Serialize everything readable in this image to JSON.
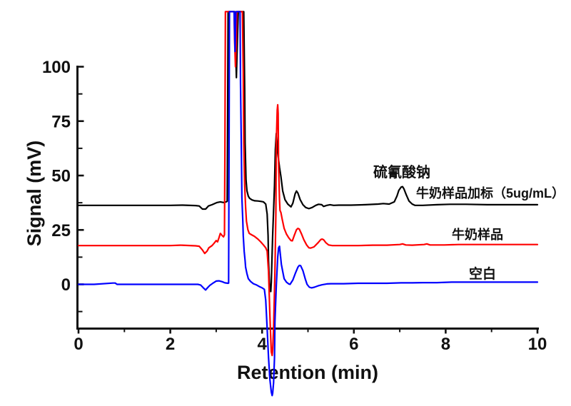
{
  "figure": {
    "background_color": "#ffffff",
    "annotations": {
      "peak_label": "硫氰酸钠",
      "spiked_label": "牛奶样品加标（5ug/mL）",
      "milk_label": "牛奶样品",
      "blank_label": "空白"
    }
  },
  "chart_data": {
    "type": "line",
    "title": "",
    "xlabel": "Retention (min)",
    "ylabel": "Signal (mV)",
    "xlim": [
      0,
      10
    ],
    "ylim_axis": [
      -21,
      100
    ],
    "grid": false,
    "x_major_ticks": [
      0,
      2,
      4,
      6,
      8,
      10
    ],
    "x_minor_ticks": [
      1,
      3,
      5,
      7,
      9
    ],
    "y_major_ticks": [
      0,
      25,
      50,
      75,
      100
    ],
    "y_minor_ticks": [
      -12.5,
      12.5,
      37.5,
      62.5,
      87.5
    ],
    "clip_top_mv": 125.3,
    "annotations": [
      {
        "text": "硫氰酸钠",
        "series": "牛奶样品加标（5ug/mL）",
        "peak_retention_min": 7.05,
        "peak_height_mv": 44.9
      }
    ],
    "series": [
      {
        "name": "牛奶样品加标（5ug/mL）",
        "color": "#000000",
        "baseline_mv": 36.3,
        "points": [
          [
            0,
            36.3
          ],
          [
            1.0,
            36.3
          ],
          [
            2.0,
            36.3
          ],
          [
            2.27,
            36.4
          ],
          [
            2.55,
            36.2
          ],
          [
            2.63,
            36.0
          ],
          [
            2.7,
            34.6
          ],
          [
            2.77,
            34.6
          ],
          [
            2.83,
            36.0
          ],
          [
            2.91,
            36.6
          ],
          [
            3.02,
            37.6
          ],
          [
            3.09,
            37.9
          ],
          [
            3.16,
            37.6
          ],
          [
            3.22,
            37.9
          ],
          [
            3.24,
            38.2
          ],
          [
            3.25,
            80
          ],
          [
            3.26,
            125.3
          ],
          [
            3.4,
            125.3
          ],
          [
            3.42,
            111
          ],
          [
            3.44,
            95.0
          ],
          [
            3.46,
            111
          ],
          [
            3.48,
            125.3
          ],
          [
            3.6,
            125.3
          ],
          [
            3.62,
            90
          ],
          [
            3.63,
            65
          ],
          [
            3.65,
            48
          ],
          [
            3.67,
            43
          ],
          [
            3.7,
            40.5
          ],
          [
            3.73,
            39.5
          ],
          [
            3.78,
            38.8
          ],
          [
            3.84,
            38.4
          ],
          [
            3.91,
            38.3
          ],
          [
            3.98,
            38.1
          ],
          [
            4.03,
            37.9
          ],
          [
            4.08,
            36.9
          ],
          [
            4.11,
            32.3
          ],
          [
            4.13,
            22.4
          ],
          [
            4.14,
            10.9
          ],
          [
            4.16,
            1.0
          ],
          [
            4.17,
            -2.6
          ],
          [
            4.19,
            -3.3
          ],
          [
            4.2,
            1.0
          ],
          [
            4.23,
            22.4
          ],
          [
            4.27,
            45.5
          ],
          [
            4.29,
            62.0
          ],
          [
            4.31,
            69.3
          ],
          [
            4.34,
            60.4
          ],
          [
            4.38,
            53.8
          ],
          [
            4.41,
            49.5
          ],
          [
            4.45,
            42.9
          ],
          [
            4.5,
            38.9
          ],
          [
            4.56,
            36.9
          ],
          [
            4.63,
            35.6
          ],
          [
            4.67,
            37.3
          ],
          [
            4.72,
            41.6
          ],
          [
            4.75,
            42.9
          ],
          [
            4.78,
            41.9
          ],
          [
            4.83,
            38.9
          ],
          [
            4.89,
            36.6
          ],
          [
            4.95,
            35.3
          ],
          [
            5.02,
            34.8
          ],
          [
            5.09,
            35.3
          ],
          [
            5.17,
            36.3
          ],
          [
            5.23,
            36.8
          ],
          [
            5.3,
            36.6
          ],
          [
            5.34,
            35.8
          ],
          [
            5.41,
            36.3
          ],
          [
            5.48,
            36.6
          ],
          [
            5.56,
            36.3
          ],
          [
            5.67,
            36.4
          ],
          [
            5.94,
            36.4
          ],
          [
            6.25,
            36.6
          ],
          [
            6.53,
            36.9
          ],
          [
            6.64,
            37.1
          ],
          [
            6.77,
            36.9
          ],
          [
            6.88,
            37.9
          ],
          [
            6.94,
            40.6
          ],
          [
            6.98,
            43.2
          ],
          [
            7.03,
            44.7
          ],
          [
            7.06,
            44.9
          ],
          [
            7.09,
            43.9
          ],
          [
            7.14,
            41.2
          ],
          [
            7.2,
            38.3
          ],
          [
            7.27,
            36.9
          ],
          [
            7.33,
            36.3
          ],
          [
            7.5,
            36.3
          ],
          [
            7.81,
            36.6
          ],
          [
            8.09,
            36.8
          ],
          [
            8.44,
            36.8
          ],
          [
            8.91,
            36.6
          ],
          [
            9.38,
            36.6
          ],
          [
            10,
            36.6
          ]
        ]
      },
      {
        "name": "牛奶样品",
        "color": "#ff0000",
        "baseline_mv": 17.8,
        "points": [
          [
            0,
            17.8
          ],
          [
            1.0,
            17.8
          ],
          [
            2.0,
            17.8
          ],
          [
            2.22,
            18.0
          ],
          [
            2.55,
            17.7
          ],
          [
            2.63,
            17.5
          ],
          [
            2.7,
            15.8
          ],
          [
            2.75,
            14.2
          ],
          [
            2.8,
            15.2
          ],
          [
            2.84,
            16.8
          ],
          [
            2.91,
            17.8
          ],
          [
            2.95,
            18.8
          ],
          [
            3.0,
            20.1
          ],
          [
            3.03,
            19.5
          ],
          [
            3.06,
            21.4
          ],
          [
            3.09,
            23.4
          ],
          [
            3.13,
            22.4
          ],
          [
            3.16,
            21.8
          ],
          [
            3.18,
            22.8
          ],
          [
            3.19,
            60
          ],
          [
            3.2,
            125.3
          ],
          [
            3.39,
            125.3
          ],
          [
            3.4,
            113
          ],
          [
            3.42,
            100
          ],
          [
            3.44,
            113
          ],
          [
            3.45,
            125.3
          ],
          [
            3.57,
            125.3
          ],
          [
            3.59,
            98
          ],
          [
            3.6,
            65.3
          ],
          [
            3.62,
            45.5
          ],
          [
            3.64,
            35.6
          ],
          [
            3.66,
            29.0
          ],
          [
            3.69,
            25.1
          ],
          [
            3.72,
            23.4
          ],
          [
            3.77,
            22.8
          ],
          [
            3.83,
            22.1
          ],
          [
            3.91,
            20.8
          ],
          [
            3.97,
            19.5
          ],
          [
            4.03,
            18.1
          ],
          [
            4.08,
            16.8
          ],
          [
            4.11,
            15.2
          ],
          [
            4.14,
            5.9
          ],
          [
            4.17,
            -13.9
          ],
          [
            4.19,
            -25.4
          ],
          [
            4.2,
            -31.0
          ],
          [
            4.22,
            -32.7
          ],
          [
            4.23,
            -30.3
          ],
          [
            4.25,
            -20.4
          ],
          [
            4.28,
            5.9
          ],
          [
            4.3,
            32.3
          ],
          [
            4.31,
            65.3
          ],
          [
            4.33,
            80.1
          ],
          [
            4.34,
            82.5
          ],
          [
            4.35,
            78.5
          ],
          [
            4.36,
            55.4
          ],
          [
            4.38,
            38.9
          ],
          [
            4.39,
            34.0
          ],
          [
            4.41,
            33.0
          ],
          [
            4.44,
            29.7
          ],
          [
            4.48,
            25.7
          ],
          [
            4.53,
            23.1
          ],
          [
            4.58,
            21.4
          ],
          [
            4.63,
            20.1
          ],
          [
            4.66,
            20.0
          ],
          [
            4.7,
            22.4
          ],
          [
            4.75,
            25.1
          ],
          [
            4.78,
            25.7
          ],
          [
            4.81,
            25.4
          ],
          [
            4.86,
            23.1
          ],
          [
            4.91,
            20.5
          ],
          [
            4.97,
            18.1
          ],
          [
            5.02,
            16.8
          ],
          [
            5.06,
            16.7
          ],
          [
            5.13,
            17.2
          ],
          [
            5.22,
            19.1
          ],
          [
            5.28,
            20.6
          ],
          [
            5.31,
            20.8
          ],
          [
            5.34,
            20.5
          ],
          [
            5.39,
            19.1
          ],
          [
            5.45,
            18.1
          ],
          [
            5.53,
            17.8
          ],
          [
            5.78,
            17.8
          ],
          [
            6.09,
            17.8
          ],
          [
            6.41,
            18.0
          ],
          [
            6.72,
            18.0
          ],
          [
            7.0,
            18.3
          ],
          [
            7.06,
            18.6
          ],
          [
            7.13,
            18.1
          ],
          [
            7.27,
            18.0
          ],
          [
            7.53,
            18.3
          ],
          [
            7.59,
            18.6
          ],
          [
            7.66,
            18.1
          ],
          [
            7.97,
            18.1
          ],
          [
            8.28,
            18.3
          ],
          [
            8.59,
            18.3
          ],
          [
            9.22,
            18.3
          ],
          [
            10,
            18.3
          ]
        ]
      },
      {
        "name": "空白",
        "color": "#0000ff",
        "baseline_mv": 0,
        "points": [
          [
            0,
            0
          ],
          [
            0.34,
            0
          ],
          [
            0.75,
            0.6
          ],
          [
            0.8,
            0.6
          ],
          [
            0.84,
            0
          ],
          [
            2.0,
            0
          ],
          [
            2.6,
            0
          ],
          [
            2.66,
            -0.3
          ],
          [
            2.72,
            -1.6
          ],
          [
            2.77,
            -2.6
          ],
          [
            2.81,
            -1.6
          ],
          [
            2.86,
            -0.5
          ],
          [
            2.94,
            0.7
          ],
          [
            3.0,
            1.5
          ],
          [
            3.06,
            1.6
          ],
          [
            3.13,
            1.2
          ],
          [
            3.19,
            0.7
          ],
          [
            3.26,
            0.5
          ],
          [
            3.27,
            0.6
          ],
          [
            3.28,
            60
          ],
          [
            3.29,
            125.3
          ],
          [
            3.39,
            125.3
          ],
          [
            3.41,
            107
          ],
          [
            3.43,
            125.3
          ],
          [
            3.52,
            125.3
          ],
          [
            3.53,
            92
          ],
          [
            3.55,
            58.7
          ],
          [
            3.56,
            40
          ],
          [
            3.58,
            29
          ],
          [
            3.59,
            22.4
          ],
          [
            3.61,
            15.2
          ],
          [
            3.63,
            10.9
          ],
          [
            3.64,
            7.9
          ],
          [
            3.67,
            4.9
          ],
          [
            3.7,
            2.6
          ],
          [
            3.75,
            1.3
          ],
          [
            3.81,
            0.3
          ],
          [
            3.88,
            -0.3
          ],
          [
            3.94,
            -1.0
          ],
          [
            4.0,
            -1.6
          ],
          [
            4.05,
            -2.3
          ],
          [
            4.08,
            -7.3
          ],
          [
            4.11,
            -20.4
          ],
          [
            4.14,
            -33.6
          ],
          [
            4.17,
            -43.5
          ],
          [
            4.2,
            -49.5
          ],
          [
            4.22,
            -51.1
          ],
          [
            4.23,
            -50.1
          ],
          [
            4.25,
            -45.2
          ],
          [
            4.27,
            -33.6
          ],
          [
            4.28,
            -17.2
          ],
          [
            4.31,
            -0.7
          ],
          [
            4.34,
            12.5
          ],
          [
            4.36,
            16.8
          ],
          [
            4.38,
            17.5
          ],
          [
            4.39,
            15.2
          ],
          [
            4.42,
            9.2
          ],
          [
            4.45,
            5.9
          ],
          [
            4.48,
            2.6
          ],
          [
            4.53,
            1.0
          ],
          [
            4.58,
            0.2
          ],
          [
            4.61,
            0
          ],
          [
            4.67,
            2.0
          ],
          [
            4.73,
            5.3
          ],
          [
            4.78,
            7.9
          ],
          [
            4.81,
            8.7
          ],
          [
            4.84,
            8.6
          ],
          [
            4.89,
            6.3
          ],
          [
            4.94,
            2.6
          ],
          [
            4.98,
            0
          ],
          [
            5.03,
            -1.3
          ],
          [
            5.08,
            -1.6
          ],
          [
            5.14,
            -1.3
          ],
          [
            5.22,
            -0.7
          ],
          [
            5.31,
            -0.2
          ],
          [
            5.41,
            0.2
          ],
          [
            5.5,
            0.3
          ],
          [
            5.78,
            0.3
          ],
          [
            6.09,
            0.5
          ],
          [
            6.41,
            0.5
          ],
          [
            6.72,
            0.5
          ],
          [
            7.03,
            0.7
          ],
          [
            7.27,
            0.7
          ],
          [
            7.5,
            0.8
          ],
          [
            7.81,
            0.8
          ],
          [
            8.13,
            1.0
          ],
          [
            8.59,
            1.0
          ],
          [
            9.22,
            1.0
          ],
          [
            10,
            1.0
          ]
        ]
      }
    ]
  }
}
